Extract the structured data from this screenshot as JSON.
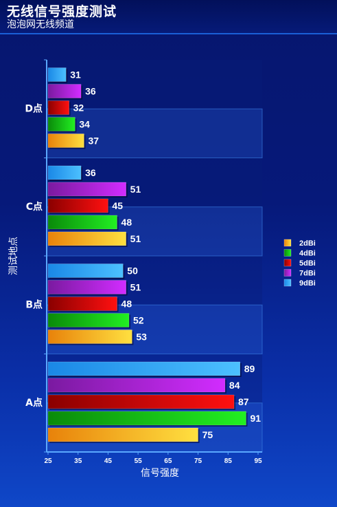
{
  "header": {
    "title": "无线信号强度测试",
    "subtitle": "泡泡网无线频道"
  },
  "chart_data": {
    "type": "bar",
    "orientation": "horizontal",
    "categories": [
      "A点",
      "B点",
      "C点",
      "D点"
    ],
    "series": [
      {
        "name": "2dBi",
        "color": "#f5b400",
        "values": [
          75,
          53,
          51,
          37
        ]
      },
      {
        "name": "4dBi",
        "color": "#18c018",
        "values": [
          91,
          52,
          48,
          34
        ]
      },
      {
        "name": "5dBi",
        "color": "#e00000",
        "values": [
          87,
          48,
          45,
          32
        ]
      },
      {
        "name": "7dBi",
        "color": "#b020d8",
        "values": [
          84,
          51,
          51,
          36
        ]
      },
      {
        "name": "9dBi",
        "color": "#2aa0f0",
        "values": [
          89,
          50,
          36,
          31
        ]
      }
    ],
    "xlim": [
      25,
      95
    ],
    "xticks": [
      25,
      35,
      45,
      55,
      65,
      75,
      85,
      95
    ],
    "xlabel": "信号强度",
    "ylabel": "测试地点",
    "legend_position": "right",
    "grid": false
  }
}
